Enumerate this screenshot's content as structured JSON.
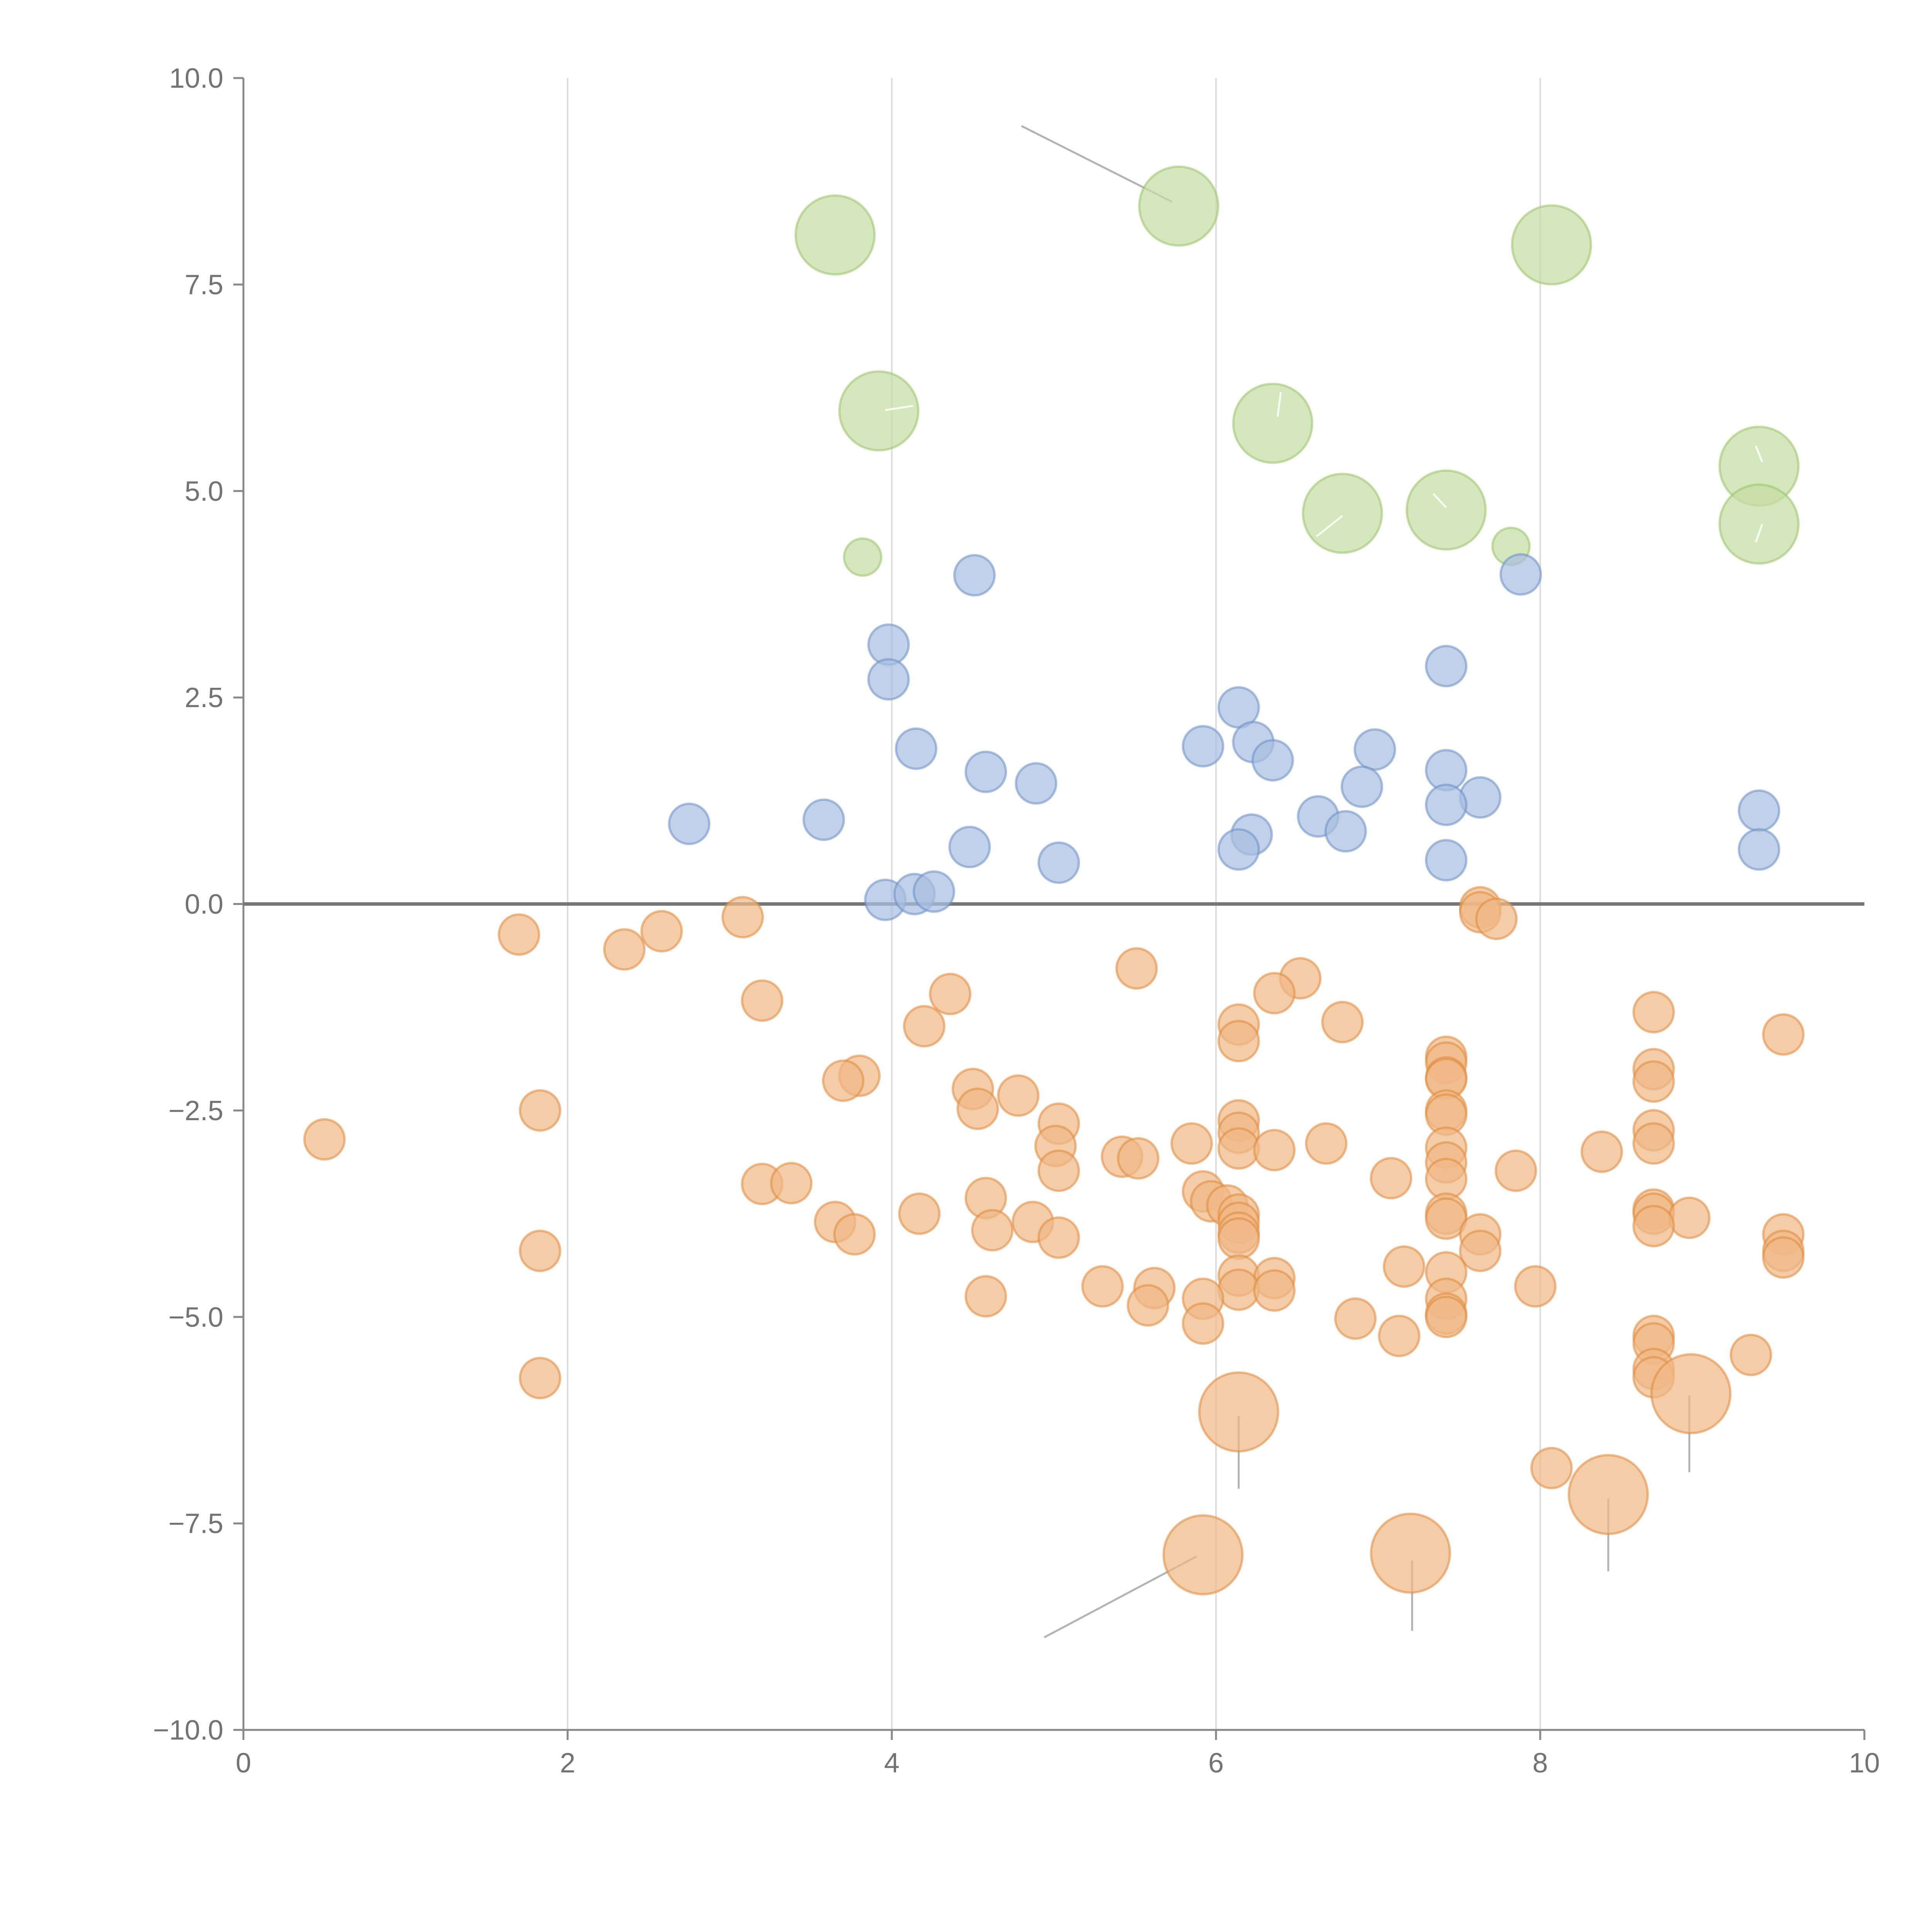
{
  "chart_data": {
    "type": "scatter",
    "title": "",
    "xlabel": "",
    "ylabel": "",
    "xlim": [
      0,
      10
    ],
    "ylim": [
      -10,
      10
    ],
    "grid": {
      "vertical": true,
      "horizontal": false
    },
    "x_ticks": [
      {
        "value": 0,
        "label": "0"
      },
      {
        "value": 2,
        "label": "2"
      },
      {
        "value": 4,
        "label": "4"
      },
      {
        "value": 6,
        "label": "6"
      },
      {
        "value": 8,
        "label": "8"
      },
      {
        "value": 10,
        "label": "10"
      }
    ],
    "y_ticks": [
      {
        "value": 10,
        "label": "10.0"
      },
      {
        "value": 7.5,
        "label": "7.5"
      },
      {
        "value": 5,
        "label": "5.0"
      },
      {
        "value": 2.5,
        "label": "2.5"
      },
      {
        "value": 0,
        "label": "0.0"
      },
      {
        "value": -2.5,
        "label": "−2.5"
      },
      {
        "value": -5,
        "label": "−5.0"
      },
      {
        "value": -7.5,
        "label": "−7.5"
      },
      {
        "value": -10,
        "label": "−10.0"
      }
    ],
    "reference_line_y": 0,
    "series": [
      {
        "name": "green",
        "color": "#9dc36b",
        "fill": "#c5dea4",
        "points": [
          {
            "x": 3.65,
            "y": 8.1,
            "size": 2
          },
          {
            "x": 5.77,
            "y": 8.45,
            "size": 2
          },
          {
            "x": 8.07,
            "y": 7.98,
            "size": 2
          },
          {
            "x": 3.92,
            "y": 5.97,
            "size": 2
          },
          {
            "x": 6.35,
            "y": 5.82,
            "size": 2
          },
          {
            "x": 9.35,
            "y": 5.3,
            "size": 2
          },
          {
            "x": 6.78,
            "y": 4.73,
            "size": 2
          },
          {
            "x": 7.42,
            "y": 4.77,
            "size": 2
          },
          {
            "x": 9.35,
            "y": 4.6,
            "size": 2
          },
          {
            "x": 3.82,
            "y": 4.2,
            "size": 1
          },
          {
            "x": 7.82,
            "y": 4.33,
            "size": 1
          }
        ]
      },
      {
        "name": "blue",
        "color": "#6b8fc6",
        "fill": "#a7bfe1",
        "points": [
          {
            "x": 4.51,
            "y": 3.98
          },
          {
            "x": 7.88,
            "y": 3.99
          },
          {
            "x": 3.98,
            "y": 3.14
          },
          {
            "x": 3.98,
            "y": 2.72
          },
          {
            "x": 7.42,
            "y": 2.88
          },
          {
            "x": 6.14,
            "y": 2.38
          },
          {
            "x": 4.15,
            "y": 1.88
          },
          {
            "x": 5.92,
            "y": 1.91
          },
          {
            "x": 6.23,
            "y": 1.96
          },
          {
            "x": 6.35,
            "y": 1.74
          },
          {
            "x": 6.98,
            "y": 1.87
          },
          {
            "x": 4.58,
            "y": 1.6
          },
          {
            "x": 4.89,
            "y": 1.46
          },
          {
            "x": 7.42,
            "y": 1.62
          },
          {
            "x": 6.9,
            "y": 1.42
          },
          {
            "x": 7.63,
            "y": 1.29
          },
          {
            "x": 7.42,
            "y": 1.2
          },
          {
            "x": 9.35,
            "y": 1.13
          },
          {
            "x": 2.75,
            "y": 0.97
          },
          {
            "x": 3.58,
            "y": 1.02
          },
          {
            "x": 6.63,
            "y": 1.06
          },
          {
            "x": 6.22,
            "y": 0.84
          },
          {
            "x": 6.8,
            "y": 0.88
          },
          {
            "x": 4.48,
            "y": 0.69
          },
          {
            "x": 6.14,
            "y": 0.66
          },
          {
            "x": 9.35,
            "y": 0.66
          },
          {
            "x": 5.03,
            "y": 0.5
          },
          {
            "x": 7.42,
            "y": 0.53
          },
          {
            "x": 3.96,
            "y": 0.05
          },
          {
            "x": 4.14,
            "y": 0.12
          },
          {
            "x": 4.26,
            "y": 0.15
          }
        ]
      },
      {
        "name": "orange",
        "color": "#e08a3c",
        "fill": "#f0b887",
        "points": [
          {
            "x": 7.63,
            "y": -0.04
          },
          {
            "x": 7.63,
            "y": -0.1
          },
          {
            "x": 7.73,
            "y": -0.18
          },
          {
            "x": 3.08,
            "y": -0.16
          },
          {
            "x": 1.7,
            "y": -0.37
          },
          {
            "x": 2.35,
            "y": -0.55
          },
          {
            "x": 2.58,
            "y": -0.33
          },
          {
            "x": 5.51,
            "y": -0.78
          },
          {
            "x": 6.52,
            "y": -0.9
          },
          {
            "x": 6.36,
            "y": -1.08
          },
          {
            "x": 4.36,
            "y": -1.09
          },
          {
            "x": 3.2,
            "y": -1.17
          },
          {
            "x": 8.7,
            "y": -1.31
          },
          {
            "x": 6.78,
            "y": -1.43
          },
          {
            "x": 6.14,
            "y": -1.46
          },
          {
            "x": 4.2,
            "y": -1.48
          },
          {
            "x": 9.5,
            "y": -1.58
          },
          {
            "x": 6.14,
            "y": -1.66
          },
          {
            "x": 7.42,
            "y": -1.85
          },
          {
            "x": 7.42,
            "y": -1.92
          },
          {
            "x": 8.7,
            "y": -2.0
          },
          {
            "x": 3.8,
            "y": -2.08
          },
          {
            "x": 7.42,
            "y": -2.1
          },
          {
            "x": 7.42,
            "y": -2.12
          },
          {
            "x": 3.7,
            "y": -2.14
          },
          {
            "x": 8.7,
            "y": -2.15
          },
          {
            "x": 4.5,
            "y": -2.24
          },
          {
            "x": 4.78,
            "y": -2.32
          },
          {
            "x": 4.53,
            "y": -2.48
          },
          {
            "x": 1.83,
            "y": -2.5
          },
          {
            "x": 7.42,
            "y": -2.5
          },
          {
            "x": 7.42,
            "y": -2.55
          },
          {
            "x": 6.14,
            "y": -2.62
          },
          {
            "x": 5.03,
            "y": -2.66
          },
          {
            "x": 8.7,
            "y": -2.74
          },
          {
            "x": 6.14,
            "y": -2.77
          },
          {
            "x": 0.5,
            "y": -2.85
          },
          {
            "x": 5.85,
            "y": -2.9
          },
          {
            "x": 6.68,
            "y": -2.9
          },
          {
            "x": 8.7,
            "y": -2.9
          },
          {
            "x": 5.01,
            "y": -2.93
          },
          {
            "x": 7.42,
            "y": -2.95
          },
          {
            "x": 6.14,
            "y": -2.96
          },
          {
            "x": 6.36,
            "y": -2.98
          },
          {
            "x": 8.38,
            "y": -3.0
          },
          {
            "x": 5.42,
            "y": -3.06
          },
          {
            "x": 5.52,
            "y": -3.08
          },
          {
            "x": 7.42,
            "y": -3.13
          },
          {
            "x": 5.03,
            "y": -3.23
          },
          {
            "x": 7.85,
            "y": -3.23
          },
          {
            "x": 7.08,
            "y": -3.32
          },
          {
            "x": 7.42,
            "y": -3.33
          },
          {
            "x": 3.2,
            "y": -3.39
          },
          {
            "x": 3.38,
            "y": -3.38
          },
          {
            "x": 5.92,
            "y": -3.48
          },
          {
            "x": 4.58,
            "y": -3.56
          },
          {
            "x": 5.97,
            "y": -3.6
          },
          {
            "x": 6.07,
            "y": -3.65
          },
          {
            "x": 8.7,
            "y": -3.7
          },
          {
            "x": 8.7,
            "y": -3.75
          },
          {
            "x": 7.42,
            "y": -3.75
          },
          {
            "x": 6.14,
            "y": -3.76
          },
          {
            "x": 4.17,
            "y": -3.75
          },
          {
            "x": 7.42,
            "y": -3.81
          },
          {
            "x": 8.92,
            "y": -3.8
          },
          {
            "x": 3.65,
            "y": -3.85
          },
          {
            "x": 4.87,
            "y": -3.85
          },
          {
            "x": 6.14,
            "y": -3.86
          },
          {
            "x": 8.7,
            "y": -3.9
          },
          {
            "x": 4.62,
            "y": -3.95
          },
          {
            "x": 6.14,
            "y": -3.98
          },
          {
            "x": 3.77,
            "y": -4.0
          },
          {
            "x": 7.63,
            "y": -4.0
          },
          {
            "x": 9.5,
            "y": -4.0
          },
          {
            "x": 5.03,
            "y": -4.04
          },
          {
            "x": 6.14,
            "y": -4.05
          },
          {
            "x": 1.83,
            "y": -4.2
          },
          {
            "x": 7.63,
            "y": -4.2
          },
          {
            "x": 9.5,
            "y": -4.2
          },
          {
            "x": 9.5,
            "y": -4.28
          },
          {
            "x": 7.16,
            "y": -4.39
          },
          {
            "x": 7.42,
            "y": -4.46
          },
          {
            "x": 6.14,
            "y": -4.5
          },
          {
            "x": 6.36,
            "y": -4.53
          },
          {
            "x": 5.3,
            "y": -4.63
          },
          {
            "x": 5.62,
            "y": -4.65
          },
          {
            "x": 7.97,
            "y": -4.63
          },
          {
            "x": 6.14,
            "y": -4.67
          },
          {
            "x": 6.36,
            "y": -4.68
          },
          {
            "x": 4.58,
            "y": -4.75
          },
          {
            "x": 7.42,
            "y": -4.78
          },
          {
            "x": 5.92,
            "y": -4.78
          },
          {
            "x": 5.58,
            "y": -4.86
          },
          {
            "x": 7.42,
            "y": -4.96
          },
          {
            "x": 7.42,
            "y": -5.0
          },
          {
            "x": 6.86,
            "y": -5.02
          },
          {
            "x": 5.92,
            "y": -5.08
          },
          {
            "x": 7.13,
            "y": -5.23
          },
          {
            "x": 8.7,
            "y": -5.23
          },
          {
            "x": 8.7,
            "y": -5.32
          },
          {
            "x": 9.3,
            "y": -5.46
          },
          {
            "x": 8.7,
            "y": -5.63
          },
          {
            "x": 8.7,
            "y": -5.73
          },
          {
            "x": 1.83,
            "y": -5.74
          },
          {
            "x": 8.07,
            "y": -6.83
          },
          {
            "x": 8.93,
            "y": -5.93,
            "size": 2
          },
          {
            "x": 6.14,
            "y": -6.15,
            "size": 2
          },
          {
            "x": 8.42,
            "y": -7.15,
            "size": 2
          },
          {
            "x": 5.92,
            "y": -7.88,
            "size": 2
          },
          {
            "x": 7.2,
            "y": -7.86,
            "size": 2
          }
        ]
      }
    ],
    "annotations": [
      {
        "from": [
          4.8,
          9.42
        ],
        "to": [
          5.73,
          8.5
        ],
        "style": "gray"
      },
      {
        "from": [
          4.94,
          -8.88
        ],
        "to": [
          5.88,
          -7.9
        ],
        "style": "gray"
      },
      {
        "from": [
          7.21,
          -8.8
        ],
        "to": [
          7.21,
          -7.95
        ],
        "style": "gray"
      },
      {
        "from": [
          8.42,
          -8.08
        ],
        "to": [
          8.42,
          -7.2
        ],
        "style": "gray"
      },
      {
        "from": [
          8.92,
          -6.88
        ],
        "to": [
          8.92,
          -5.95
        ],
        "style": "gray"
      },
      {
        "from": [
          6.14,
          -7.08
        ],
        "to": [
          6.14,
          -6.2
        ],
        "style": "gray"
      },
      {
        "from": [
          3.96,
          5.98
        ],
        "to": [
          4.13,
          6.03
        ],
        "style": "light"
      },
      {
        "from": [
          6.38,
          5.9
        ],
        "to": [
          6.4,
          6.2
        ],
        "style": "light"
      },
      {
        "from": [
          6.62,
          4.45
        ],
        "to": [
          6.78,
          4.7
        ],
        "style": "light"
      },
      {
        "from": [
          7.34,
          4.97
        ],
        "to": [
          7.42,
          4.8
        ],
        "style": "light"
      },
      {
        "from": [
          9.33,
          5.55
        ],
        "to": [
          9.37,
          5.35
        ],
        "style": "light"
      },
      {
        "from": [
          9.33,
          4.38
        ],
        "to": [
          9.37,
          4.6
        ],
        "style": "light"
      }
    ]
  }
}
